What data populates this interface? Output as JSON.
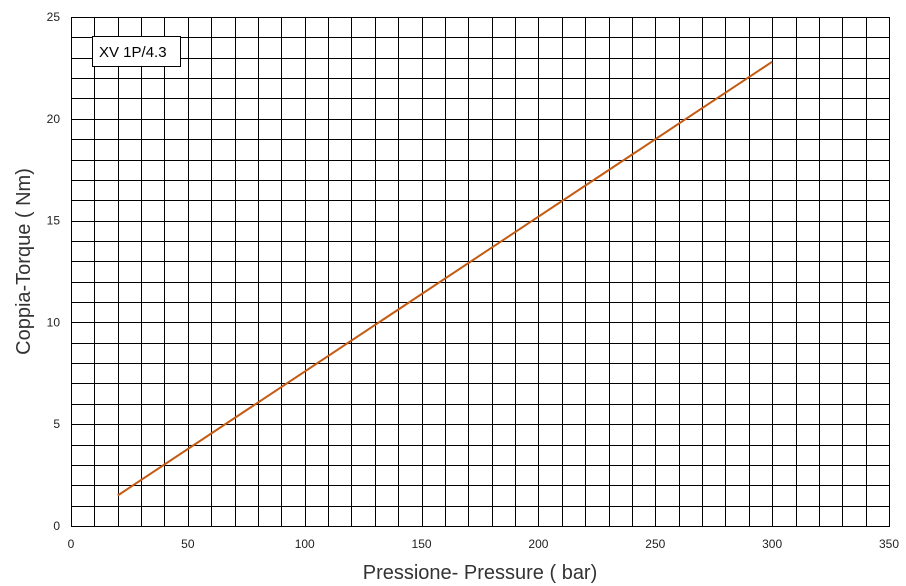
{
  "chart_data": {
    "type": "line",
    "title": "",
    "xlabel": "Pressione- Pressure ( bar)",
    "ylabel": "Coppia-Torque ( Nm)",
    "xlim": [
      0,
      350
    ],
    "ylim": [
      0,
      25
    ],
    "xticks": [
      "0",
      "50",
      "100",
      "150",
      "200",
      "250",
      "300",
      "350"
    ],
    "yticks": [
      "0",
      "5",
      "10",
      "15",
      "20",
      "25"
    ],
    "x_minor_step": 10,
    "y_minor_step": 1,
    "grid": true,
    "legend_position": "top-left",
    "series": [
      {
        "name": "XV 1P/4.3",
        "color": "#c55a11",
        "x": [
          20,
          300
        ],
        "y": [
          1.5,
          22.8
        ]
      }
    ]
  }
}
